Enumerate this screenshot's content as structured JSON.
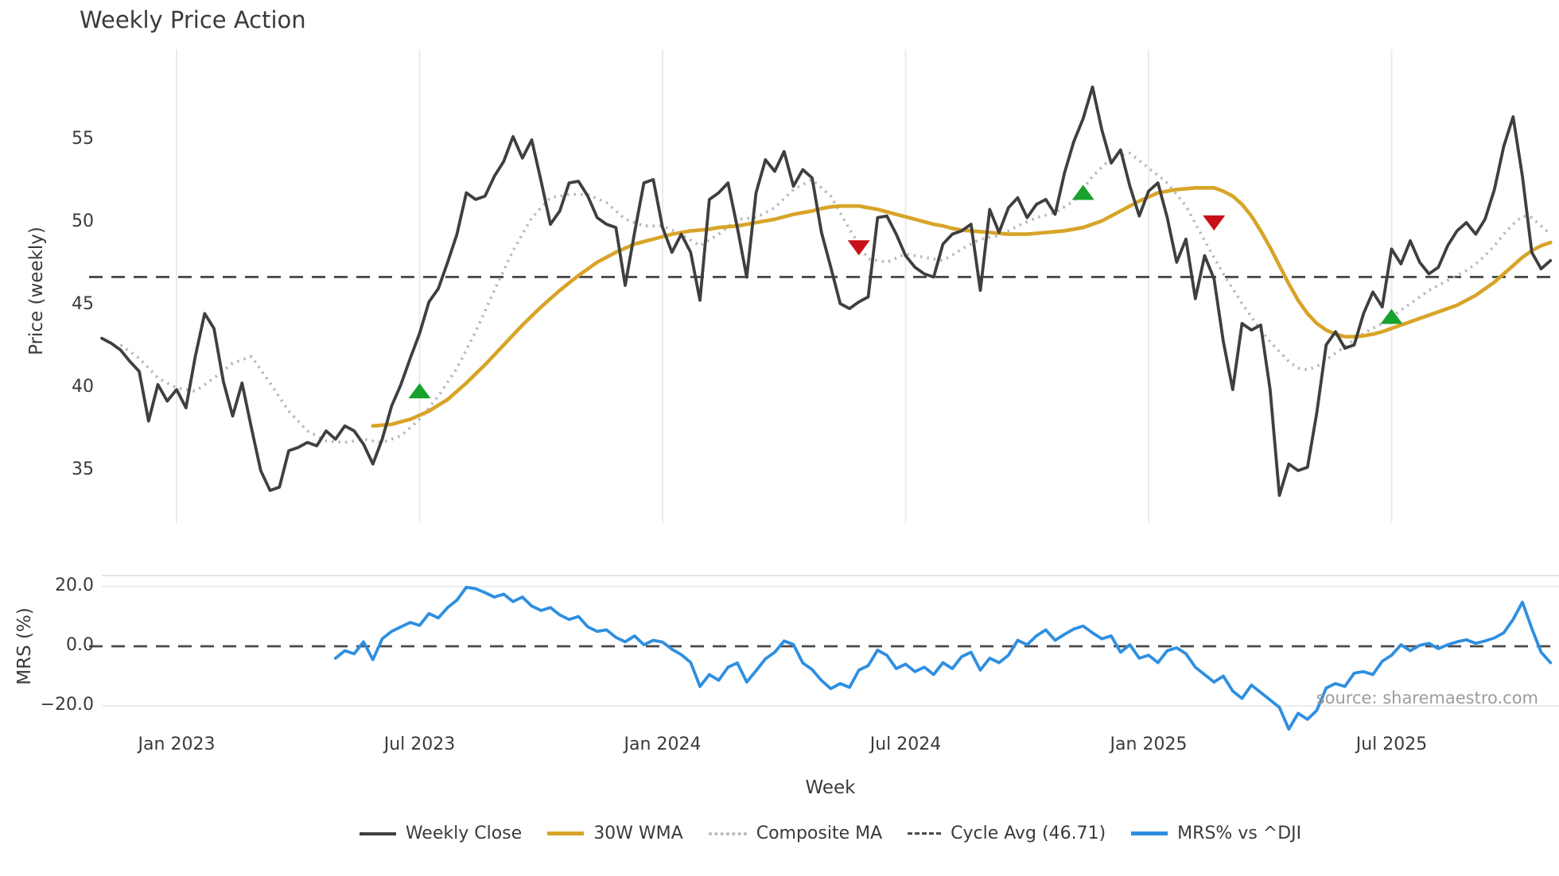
{
  "title": "Weekly Price Action",
  "source_text": "source: sharemaestro.com",
  "axes": {
    "price_label": "Price (weekly)",
    "mrs_label": "MRS (%)",
    "week_label": "Week"
  },
  "legend": {
    "weekly_close": "Weekly Close",
    "wma": "30W WMA",
    "composite": "Composite MA",
    "cycle": "Cycle Avg (46.71)",
    "mrs": "MRS% vs ^DJI"
  },
  "colors": {
    "close": "#3f3f3f",
    "wma": "#d8a428",
    "composite": "#b7b7b7",
    "cycle_dash": "#4a4a4a",
    "mrs_line": "#2e8fe0",
    "buy_marker": "#17a22e",
    "sell_marker": "#c8101a",
    "gridline": "#ebebeb",
    "mrs_gridline": "#e7e7e7",
    "text": "#3a3a3a",
    "source": "#9c9c9c"
  },
  "chart_data": {
    "type": "line",
    "title": "Weekly Price Action",
    "xlabel": "Week",
    "panels": [
      {
        "name": "price",
        "ylabel": "Price (weekly)",
        "ylim": [
          32.5,
          59.5
        ],
        "yticks": [
          55,
          50,
          45,
          40,
          35
        ],
        "grid": "vertical"
      },
      {
        "name": "mrs",
        "ylabel": "MRS (%)",
        "ylim": [
          -30,
          22
        ],
        "yticks": [
          20.0,
          0.0,
          -20.0
        ],
        "ytick_labels": [
          "20.0",
          "0.0",
          "−20.0"
        ],
        "grid": "horizontal"
      }
    ],
    "x_ticks": [
      {
        "week": 8,
        "label": "Jan 2023"
      },
      {
        "week": 34,
        "label": "Jul 2023"
      },
      {
        "week": 60,
        "label": "Jan 2024"
      },
      {
        "week": 86,
        "label": "Jul 2024"
      },
      {
        "week": 112,
        "label": "Jan 2025"
      },
      {
        "week": 138,
        "label": "Jul 2025"
      }
    ],
    "cycle_avg": 46.71,
    "series": [
      {
        "name": "Weekly Close",
        "panel": "price",
        "start": 0,
        "values": [
          43.0,
          42.7,
          42.3,
          41.6,
          41.0,
          38.0,
          40.2,
          39.2,
          39.9,
          38.8,
          41.9,
          44.5,
          43.6,
          40.4,
          38.3,
          40.3,
          37.6,
          35.0,
          33.8,
          34.0,
          36.2,
          36.4,
          36.7,
          36.5,
          37.4,
          36.9,
          37.7,
          37.4,
          36.6,
          35.4,
          36.9,
          38.9,
          40.2,
          41.8,
          43.3,
          45.2,
          46.0,
          47.6,
          49.3,
          51.8,
          51.4,
          51.6,
          52.8,
          53.7,
          55.2,
          53.9,
          55.0,
          52.5,
          49.9,
          50.7,
          52.4,
          52.5,
          51.6,
          50.3,
          49.9,
          49.7,
          46.2,
          49.4,
          52.4,
          52.6,
          49.7,
          48.2,
          49.3,
          48.2,
          45.3,
          51.4,
          51.8,
          52.4,
          49.7,
          46.7,
          51.8,
          53.8,
          53.1,
          54.3,
          52.2,
          53.2,
          52.7,
          49.4,
          47.3,
          45.1,
          44.8,
          45.2,
          45.5,
          50.3,
          50.4,
          49.3,
          48.0,
          47.3,
          46.9,
          46.7,
          48.7,
          49.3,
          49.5,
          49.9,
          45.9,
          50.8,
          49.4,
          50.9,
          51.5,
          50.3,
          51.1,
          51.4,
          50.5,
          53.0,
          54.9,
          56.3,
          58.2,
          55.6,
          53.6,
          54.4,
          52.2,
          50.4,
          51.9,
          52.4,
          50.3,
          47.6,
          49.0,
          45.4,
          48.0,
          46.6,
          42.8,
          39.9,
          43.9,
          43.5,
          43.8,
          39.9,
          33.5,
          35.4,
          35.0,
          35.2,
          38.5,
          42.6,
          43.4,
          42.4,
          42.6,
          44.5,
          45.8,
          44.9,
          48.4,
          47.5,
          48.9,
          47.6,
          46.9,
          47.3,
          48.6,
          49.5,
          50.0,
          49.3,
          50.2,
          52.0,
          54.6,
          56.4,
          52.8,
          48.2,
          47.2,
          47.7
        ]
      },
      {
        "name": "30W WMA",
        "panel": "price",
        "start": 29,
        "values": [
          37.7,
          37.75,
          37.8,
          37.95,
          38.1,
          38.35,
          38.6,
          38.95,
          39.3,
          39.8,
          40.3,
          40.85,
          41.4,
          42.0,
          42.6,
          43.2,
          43.8,
          44.35,
          44.9,
          45.4,
          45.9,
          46.35,
          46.8,
          47.2,
          47.6,
          47.9,
          48.2,
          48.45,
          48.7,
          48.85,
          49.0,
          49.15,
          49.3,
          49.4,
          49.5,
          49.55,
          49.6,
          49.7,
          49.75,
          49.8,
          49.9,
          50.0,
          50.1,
          50.2,
          50.35,
          50.5,
          50.6,
          50.7,
          50.85,
          50.95,
          51.0,
          51.0,
          51.0,
          50.9,
          50.8,
          50.65,
          50.5,
          50.35,
          50.2,
          50.05,
          49.9,
          49.8,
          49.65,
          49.55,
          49.5,
          49.45,
          49.4,
          49.35,
          49.3,
          49.3,
          49.3,
          49.35,
          49.4,
          49.45,
          49.5,
          49.6,
          49.7,
          49.9,
          50.1,
          50.4,
          50.7,
          51.0,
          51.3,
          51.55,
          51.8,
          51.9,
          52.0,
          52.05,
          52.1,
          52.1,
          52.1,
          51.9,
          51.6,
          51.1,
          50.4,
          49.5,
          48.5,
          47.4,
          46.3,
          45.3,
          44.5,
          43.9,
          43.5,
          43.25,
          43.1,
          43.1,
          43.15,
          43.25,
          43.4,
          43.6,
          43.8,
          44.0,
          44.2,
          44.4,
          44.6,
          44.8,
          45.0,
          45.3,
          45.6,
          46.0,
          46.4,
          46.9,
          47.4,
          47.9,
          48.3,
          48.6,
          48.8
        ]
      },
      {
        "name": "Composite MA",
        "panel": "price",
        "start": 2,
        "values": [
          42.6,
          42.2,
          41.8,
          41.2,
          40.6,
          40.3,
          40.0,
          39.9,
          39.8,
          40.2,
          40.6,
          41.05,
          41.5,
          41.7,
          41.9,
          41.1,
          40.3,
          39.45,
          38.6,
          38.0,
          37.4,
          37.1,
          36.8,
          36.75,
          36.7,
          36.8,
          36.9,
          36.8,
          36.7,
          36.9,
          37.1,
          37.6,
          38.1,
          38.8,
          39.5,
          40.35,
          41.2,
          42.3,
          43.4,
          44.65,
          45.9,
          47.1,
          48.3,
          49.3,
          50.3,
          50.9,
          51.5,
          51.6,
          51.7,
          51.7,
          51.7,
          51.45,
          51.2,
          50.7,
          50.2,
          50.0,
          49.8,
          49.8,
          49.8,
          49.55,
          49.3,
          48.95,
          48.6,
          48.95,
          49.3,
          49.75,
          50.2,
          50.25,
          50.3,
          50.6,
          50.9,
          51.45,
          52.0,
          52.3,
          52.6,
          52.1,
          51.6,
          50.6,
          49.6,
          48.7,
          47.8,
          47.7,
          47.6,
          47.85,
          48.1,
          48.0,
          47.9,
          47.8,
          47.7,
          48.05,
          48.4,
          48.7,
          49.0,
          49.1,
          49.2,
          49.5,
          49.8,
          50.05,
          50.3,
          50.45,
          50.6,
          50.95,
          51.3,
          52.05,
          52.8,
          53.35,
          53.9,
          54.05,
          54.2,
          53.75,
          53.3,
          52.85,
          52.4,
          51.7,
          51.0,
          49.95,
          48.9,
          47.9,
          46.9,
          46.0,
          45.1,
          44.3,
          43.5,
          42.8,
          42.2,
          41.6,
          41.2,
          41.1,
          41.3,
          41.7,
          42.1,
          42.5,
          42.9,
          43.3,
          43.6,
          43.9,
          44.3,
          44.7,
          45.1,
          45.5,
          45.9,
          46.2,
          46.5,
          46.8,
          47.1,
          47.5,
          48.0,
          48.6,
          49.3,
          49.9,
          50.4,
          50.3,
          49.8,
          49.3
        ]
      },
      {
        "name": "MRS% vs ^DJI",
        "panel": "mrs",
        "start": 25,
        "values": [
          -4.0,
          -1.5,
          -2.5,
          1.5,
          -4.5,
          2.5,
          5.0,
          6.5,
          8.0,
          7.0,
          11.0,
          9.5,
          13.0,
          15.5,
          19.8,
          19.3,
          18.0,
          16.5,
          17.5,
          15.0,
          16.5,
          13.5,
          12.0,
          13.0,
          10.5,
          9.0,
          10.0,
          6.5,
          5.0,
          5.5,
          3.0,
          1.5,
          3.5,
          0.5,
          2.0,
          1.4,
          -1.0,
          -2.8,
          -5.4,
          -13.5,
          -9.5,
          -11.4,
          -7.0,
          -5.6,
          -12.0,
          -8.2,
          -4.2,
          -2.0,
          1.8,
          0.6,
          -5.6,
          -7.8,
          -11.5,
          -14.2,
          -12.5,
          -13.8,
          -8.0,
          -6.5,
          -1.3,
          -3.0,
          -7.5,
          -6.0,
          -8.5,
          -7.0,
          -9.5,
          -5.5,
          -7.5,
          -3.5,
          -2.0,
          -8.0,
          -4.0,
          -5.5,
          -3.0,
          2.0,
          0.5,
          3.5,
          5.5,
          2.0,
          4.0,
          5.8,
          6.8,
          4.5,
          2.5,
          3.5,
          -2.0,
          0.5,
          -4.0,
          -3.0,
          -5.5,
          -1.5,
          -0.5,
          -2.5,
          -7.0,
          -9.5,
          -12.0,
          -10.0,
          -15.0,
          -17.5,
          -13.0,
          -15.5,
          -18.0,
          -20.5,
          -27.8,
          -22.5,
          -24.5,
          -21.5,
          -14.0,
          -12.5,
          -13.5,
          -9.0,
          -8.5,
          -9.5,
          -5.0,
          -3.0,
          0.5,
          -1.5,
          0.3,
          1.0,
          -0.8,
          0.5,
          1.5,
          2.2,
          1.0,
          1.8,
          2.8,
          4.5,
          9.0,
          14.8,
          6.0,
          -2.0,
          -5.5
        ]
      },
      {
        "name": "Cycle Avg",
        "panel": "price",
        "type": "hline",
        "value": 46.71
      },
      {
        "name": "MRS zero line",
        "panel": "mrs",
        "type": "hline",
        "value": 0.0
      }
    ],
    "markers": {
      "buy": [
        {
          "week": 34,
          "price": 39.8
        },
        {
          "week": 105,
          "price": 51.8
        },
        {
          "week": 138,
          "price": 44.3
        }
      ],
      "sell": [
        {
          "week": 81,
          "price": 48.5
        },
        {
          "week": 119,
          "price": 50.0
        }
      ]
    },
    "legend_position": "bottom-center"
  }
}
